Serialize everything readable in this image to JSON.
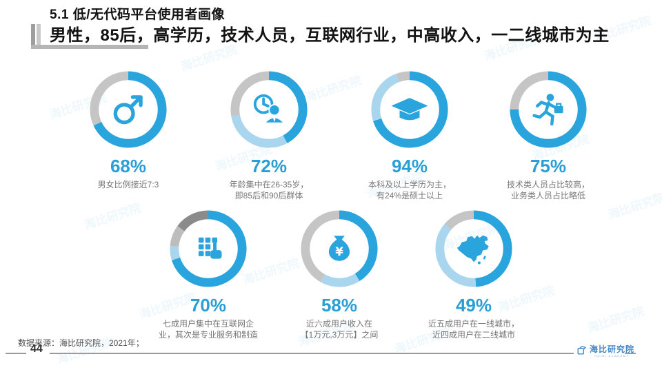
{
  "title": "5.1 低/无代码平台使用者画像",
  "subtitle": "男性，85后，高学历，技术人员，互联网行业，中高收入，一二线城市为主",
  "palette": {
    "blue": "#29a4dd",
    "lightblue": "#a9d5ee",
    "gray": "#c5c5c5",
    "silver": "#bdbdbd",
    "darkgray": "#8b8b8b"
  },
  "watermark": {
    "text": "海比研究院"
  },
  "chart_data": [
    {
      "type": "donut",
      "name": "gender",
      "percent_label": "68%",
      "value": 68,
      "caption": [
        "男女比例接近7:3"
      ],
      "segments": [
        {
          "color": "blue",
          "value": 68
        },
        {
          "color": "gray",
          "value": 32
        }
      ]
    },
    {
      "type": "donut",
      "name": "age",
      "percent_label": "72%",
      "value": 72,
      "caption": [
        "年龄集中在26-35岁，",
        "即85后和90后群体"
      ],
      "segments": [
        {
          "color": "blue",
          "value": 42
        },
        {
          "color": "lightblue",
          "value": 30
        },
        {
          "color": "gray",
          "value": 28
        }
      ]
    },
    {
      "type": "donut",
      "name": "education",
      "percent_label": "94%",
      "value": 94,
      "caption": [
        "本科及以上学历为主，",
        "有24%是硕士以上"
      ],
      "segments": [
        {
          "color": "blue",
          "value": 70
        },
        {
          "color": "lightblue",
          "value": 24
        },
        {
          "color": "gray",
          "value": 6
        }
      ]
    },
    {
      "type": "donut",
      "name": "profession",
      "percent_label": "75%",
      "value": 75,
      "caption": [
        "技术类人员占比较高，",
        "业务类人员占比略低"
      ],
      "segments": [
        {
          "color": "blue",
          "value": 75
        },
        {
          "color": "gray",
          "value": 25
        }
      ]
    },
    {
      "type": "donut",
      "name": "industry",
      "percent_label": "70%",
      "value": 70,
      "caption": [
        "七成用户集中在互联网企",
        "业，其次是专业服务和制造"
      ],
      "segments": [
        {
          "color": "blue",
          "value": 70
        },
        {
          "color": "lightblue",
          "value": 6
        },
        {
          "color": "silver",
          "value": 9
        },
        {
          "color": "darkgray",
          "value": 15
        }
      ]
    },
    {
      "type": "donut",
      "name": "income",
      "percent_label": "58%",
      "value": 58,
      "caption": [
        "近六成用户收入在",
        "【1万元,3万元】之间"
      ],
      "segments": [
        {
          "color": "blue",
          "value": 41
        },
        {
          "color": "lightblue",
          "value": 17
        },
        {
          "color": "gray",
          "value": 42
        }
      ]
    },
    {
      "type": "donut",
      "name": "region",
      "percent_label": "49%",
      "value": 49,
      "caption": [
        "近五成用户在一线城市，",
        "近四成用户在二线城市"
      ],
      "segments": [
        {
          "color": "blue",
          "value": 49
        },
        {
          "color": "lightblue",
          "value": 37
        },
        {
          "color": "gray",
          "value": 14
        }
      ]
    }
  ],
  "footer": {
    "source": "数据来源：海比研究院，2021年；",
    "page_number": "44",
    "logo_name": "海比研究院",
    "logo_tagline": "HAIBI ACADEMY"
  }
}
